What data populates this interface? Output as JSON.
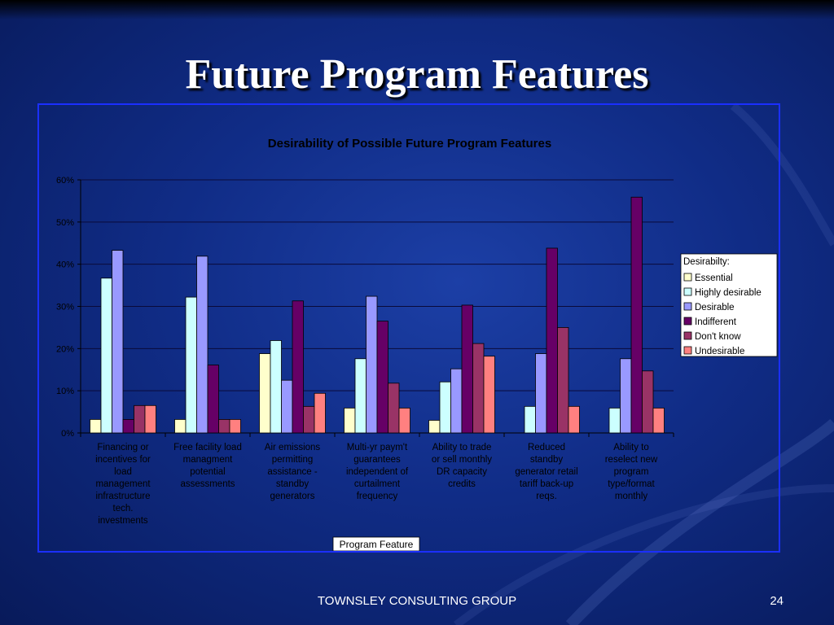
{
  "slide": {
    "title": "Future Program Features",
    "footer": "TOWNSLEY CONSULTING GROUP",
    "page_number": "24"
  },
  "colors": {
    "background": "#102c86",
    "frame_border": "#1b2fff",
    "grid": "#0a0a3a",
    "text": "#000000"
  },
  "chart_data": {
    "type": "bar",
    "title": "Desirability of Possible Future Program Features",
    "xlabel": "Program Feature",
    "ylabel": "",
    "ylim": [
      0,
      60
    ],
    "y_ticks": [
      "0%",
      "10%",
      "20%",
      "30%",
      "40%",
      "50%",
      "60%"
    ],
    "grid": true,
    "legend_title": "Desirabilty:",
    "legend_position": "right",
    "categories": [
      [
        "Financing or",
        "incentives for",
        "load",
        "management",
        "infrastructure",
        "tech.",
        "investments"
      ],
      [
        "Free facility load",
        "managment",
        "potential",
        "assessments"
      ],
      [
        "Air emissions",
        "permitting",
        "assistance -",
        "standby",
        "generators"
      ],
      [
        "Multi-yr paym't",
        "guarantees",
        "independent of",
        "curtailment",
        "frequency"
      ],
      [
        "Ability to trade",
        "or sell monthly",
        "DR capacity",
        "credits"
      ],
      [
        "Reduced",
        "standby",
        "generator retail",
        "tariff back-up",
        "reqs."
      ],
      [
        "Ability to",
        "reselect new",
        "program",
        "type/format",
        "monthly"
      ]
    ],
    "series": [
      {
        "name": "Essential",
        "color": "#ffffcc",
        "values": [
          3.2,
          3.2,
          18.8,
          5.9,
          3.0,
          0,
          0
        ]
      },
      {
        "name": "Highly desirable",
        "color": "#ccffff",
        "values": [
          36.7,
          32.2,
          21.9,
          17.6,
          12.1,
          6.3,
          5.9
        ]
      },
      {
        "name": "Desirable",
        "color": "#9999ff",
        "values": [
          43.3,
          41.9,
          12.5,
          32.4,
          15.2,
          18.8,
          17.6
        ]
      },
      {
        "name": "Indifferent",
        "color": "#660066",
        "values": [
          3.2,
          16.1,
          31.3,
          26.5,
          30.3,
          43.8,
          55.9
        ]
      },
      {
        "name": "Don't know",
        "color": "#993366",
        "values": [
          6.5,
          3.2,
          6.3,
          11.8,
          21.2,
          25.0,
          14.7
        ]
      },
      {
        "name": "Undesirable",
        "color": "#ff8080",
        "values": [
          6.5,
          3.2,
          9.4,
          5.9,
          18.2,
          6.3,
          5.9
        ]
      }
    ]
  }
}
